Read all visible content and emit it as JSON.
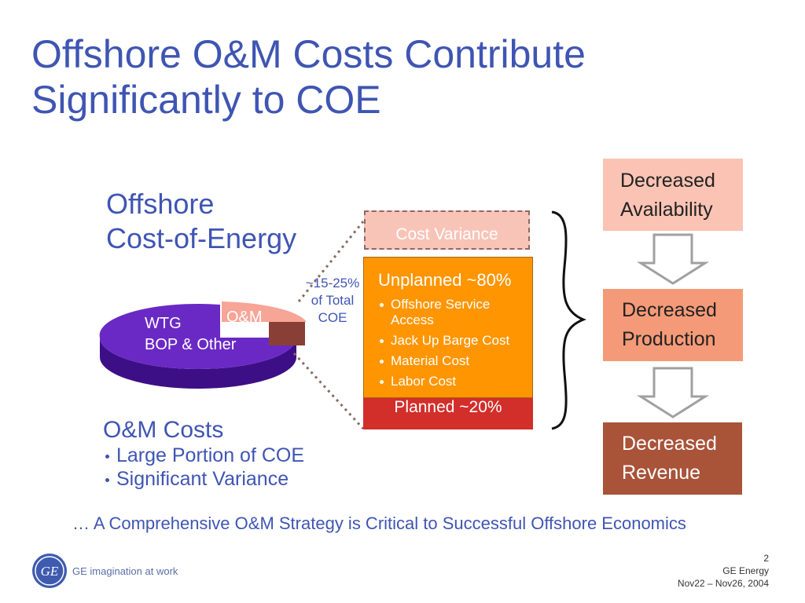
{
  "title": {
    "line1": "Offshore O&M Costs Contribute",
    "line2": "Significantly to COE"
  },
  "pie": {
    "heading_line1": "Offshore",
    "heading_line2": "Cost-of-Energy",
    "slices": {
      "wtg": "WTG",
      "bop": "BOP & Other",
      "om": "O&M"
    },
    "share_note": {
      "line1": "~15-25%",
      "line2": "of Total",
      "line3": "COE"
    },
    "colors": {
      "main": "#6a29c4",
      "om": "#f6a597"
    }
  },
  "breakdown": {
    "variance": "Cost Variance",
    "unplanned": {
      "label": "Unplanned ~80%",
      "items": [
        "Offshore Service Access",
        "Jack Up Barge Cost",
        "Material Cost",
        "Labor Cost"
      ]
    },
    "planned": "Planned ~20%",
    "colors": {
      "unplanned": "#ff9500",
      "planned": "#d22e2a",
      "variance": "#f9c4b8"
    }
  },
  "consequences": [
    {
      "line1": "Decreased",
      "line2": "Availability",
      "color": "#fbc3b3"
    },
    {
      "line1": "Decreased",
      "line2": "Production",
      "color": "#f59a78"
    },
    {
      "line1": "Decreased",
      "line2": "Revenue",
      "color": "#a95339"
    }
  ],
  "om_costs": {
    "heading": "O&M Costs",
    "items": [
      "Large Portion of COE",
      "Significant Variance"
    ]
  },
  "conclusion": "… A Comprehensive O&M Strategy is Critical to Successful Offshore Economics",
  "footer": {
    "logo": "GE",
    "tagline": "GE imagination at work",
    "page_number": "2",
    "company": "GE Energy",
    "dates": "Nov22 – Nov26, 2004"
  }
}
